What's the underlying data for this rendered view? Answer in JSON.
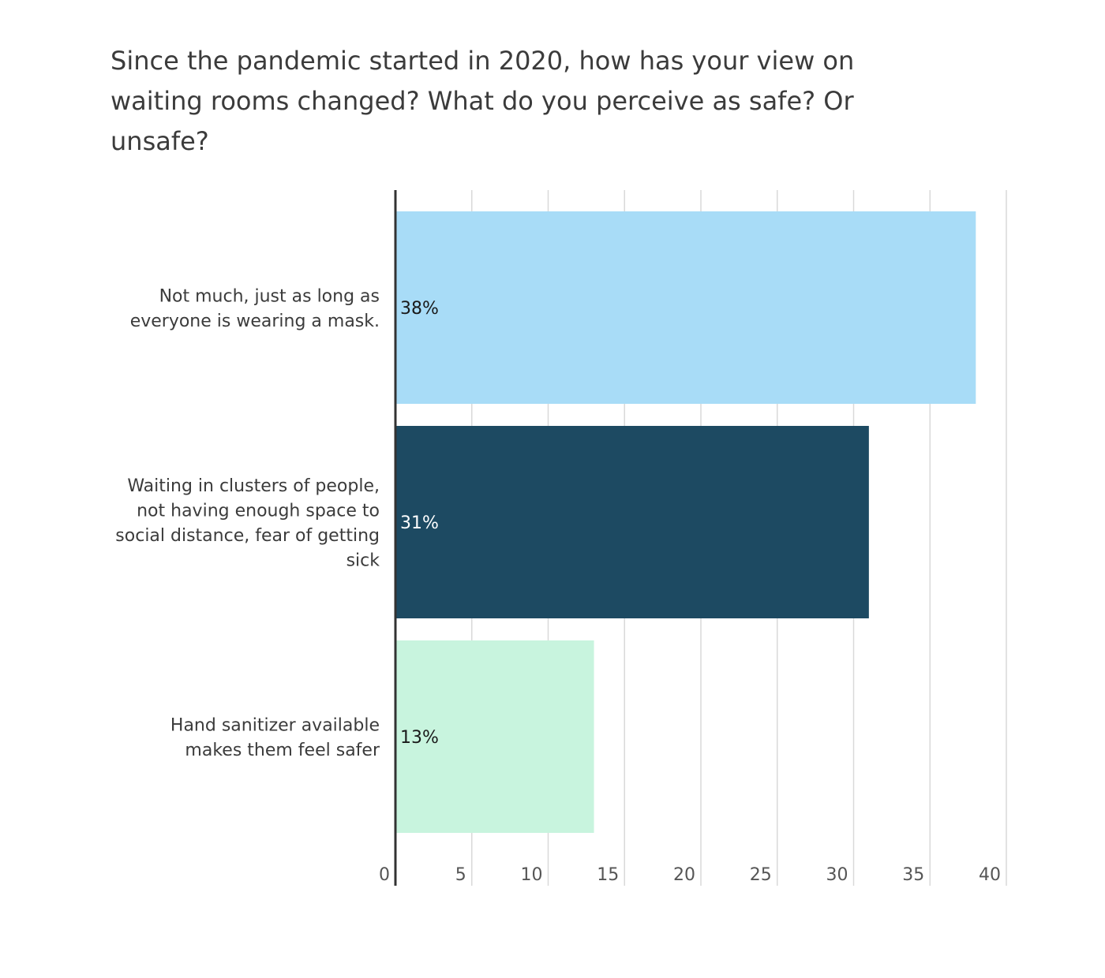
{
  "chart_data": {
    "type": "bar",
    "orientation": "horizontal",
    "title": "Since the pandemic started in 2020, how has your view on waiting rooms changed? What do you perceive as safe? Or unsafe?",
    "categories": [
      [
        "Not much, just as long as",
        "everyone is wearing a mask."
      ],
      [
        "Waiting in clusters of people,",
        "not having enough space to",
        "social distance, fear of getting",
        "sick"
      ],
      [
        "Hand sanitizer available",
        "makes them feel safer"
      ]
    ],
    "values": [
      38,
      31,
      13
    ],
    "data_labels": [
      "38%",
      "31%",
      "13%"
    ],
    "colors": [
      "#a8dcf7",
      "#1d4a62",
      "#c8f4de"
    ],
    "label_colors": [
      "#1a1a1a",
      "#ffffff",
      "#1a1a1a"
    ],
    "xticks": [
      "0",
      "5",
      "10",
      "15",
      "20",
      "25",
      "30",
      "35",
      "40"
    ],
    "xlim": [
      0,
      40
    ],
    "grid": true,
    "xlabel": "",
    "ylabel": ""
  }
}
